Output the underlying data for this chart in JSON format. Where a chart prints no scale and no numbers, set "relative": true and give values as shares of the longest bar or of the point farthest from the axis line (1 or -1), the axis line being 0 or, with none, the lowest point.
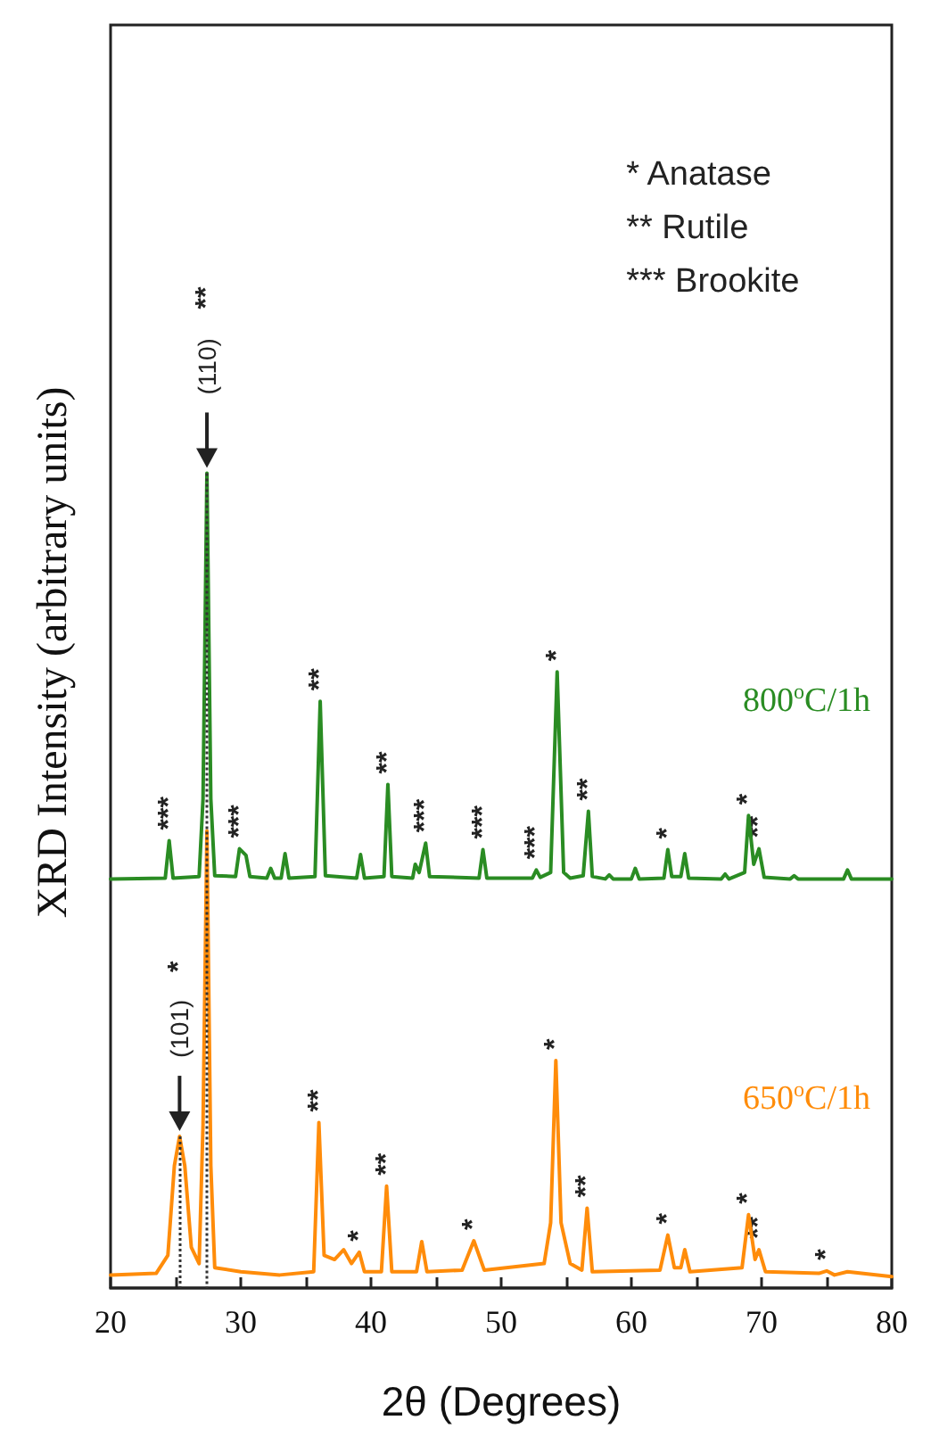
{
  "chart_data": {
    "type": "line",
    "xlabel": "2θ (Degrees)",
    "ylabel": "XRD Intensity (arbitrary units)",
    "relative": true,
    "grid": false,
    "marker": "none",
    "line_style": "solid",
    "xlim": [
      20,
      80
    ],
    "xticks": [
      20,
      {
        "value": 25,
        "label": null
      },
      30,
      {
        "value": 35,
        "label": null
      },
      40,
      {
        "value": 45,
        "label": null
      },
      50,
      {
        "value": 55,
        "label": null
      },
      60,
      {
        "value": 65,
        "label": null
      },
      70,
      {
        "value": 75,
        "label": null
      },
      80
    ],
    "series": [
      {
        "name": "800$^{o}$C/1h",
        "color": "#2a8c23",
        "x": [
          20,
          24.2,
          24.5,
          24.8,
          26.8,
          27.1,
          27.4,
          27.7,
          28.0,
          29.6,
          29.9,
          30.4,
          30.7,
          32.0,
          32.3,
          32.6,
          33.1,
          33.4,
          33.7,
          35.7,
          36.1,
          36.5,
          38.9,
          39.2,
          39.5,
          41.0,
          41.3,
          41.6,
          43.2,
          43.4,
          43.7,
          44.2,
          44.5,
          48.3,
          48.6,
          48.9,
          52.4,
          52.7,
          53.0,
          53.8,
          54.3,
          54.8,
          55.3,
          56.3,
          56.7,
          57.0,
          58.0,
          58.3,
          58.6,
          60.0,
          60.3,
          60.6,
          62.5,
          62.8,
          63.1,
          63.8,
          64.1,
          64.4,
          66.9,
          67.2,
          67.5,
          68.7,
          69.0,
          69.4,
          69.8,
          70.2,
          72.2,
          72.5,
          72.8,
          76.3,
          76.6,
          76.9,
          80
        ],
        "values": [
          0.502,
          0.503,
          0.549,
          0.503,
          0.505,
          0.6,
          1.0,
          0.6,
          0.506,
          0.505,
          0.539,
          0.531,
          0.505,
          0.503,
          0.515,
          0.503,
          0.503,
          0.533,
          0.503,
          0.505,
          0.72,
          0.506,
          0.503,
          0.532,
          0.503,
          0.505,
          0.618,
          0.505,
          0.503,
          0.52,
          0.51,
          0.546,
          0.505,
          0.503,
          0.538,
          0.503,
          0.503,
          0.513,
          0.504,
          0.51,
          0.756,
          0.51,
          0.503,
          0.506,
          0.585,
          0.505,
          0.502,
          0.507,
          0.502,
          0.502,
          0.515,
          0.502,
          0.503,
          0.538,
          0.505,
          0.505,
          0.533,
          0.503,
          0.502,
          0.508,
          0.502,
          0.51,
          0.58,
          0.52,
          0.539,
          0.504,
          0.502,
          0.506,
          0.502,
          0.502,
          0.513,
          0.502,
          0.502
        ]
      },
      {
        "name": "650$^{o}$C/1h",
        "color": "#ff8c0a",
        "x": [
          20,
          23.5,
          24.4,
          24.9,
          25.3,
          25.7,
          26.2,
          26.8,
          27.1,
          27.4,
          27.7,
          28.0,
          30,
          33,
          35.6,
          36.0,
          36.4,
          37.2,
          37.9,
          38.5,
          39.1,
          39.5,
          40.8,
          41.2,
          41.6,
          43.5,
          43.9,
          44.3,
          47.0,
          47.9,
          48.7,
          53.3,
          53.8,
          54.2,
          54.6,
          55.3,
          56.2,
          56.6,
          57.0,
          62.2,
          62.8,
          63.3,
          63.8,
          64.1,
          64.5,
          68.5,
          69.0,
          69.5,
          69.8,
          70.3,
          74.4,
          75.0,
          75.6,
          76.6,
          80
        ],
        "values": [
          0.016,
          0.018,
          0.04,
          0.15,
          0.186,
          0.15,
          0.05,
          0.03,
          0.2,
          0.561,
          0.15,
          0.025,
          0.02,
          0.016,
          0.02,
          0.203,
          0.04,
          0.035,
          0.047,
          0.03,
          0.044,
          0.02,
          0.02,
          0.125,
          0.02,
          0.02,
          0.057,
          0.02,
          0.022,
          0.058,
          0.022,
          0.03,
          0.08,
          0.279,
          0.08,
          0.03,
          0.022,
          0.098,
          0.02,
          0.022,
          0.065,
          0.025,
          0.025,
          0.047,
          0.02,
          0.025,
          0.09,
          0.035,
          0.047,
          0.02,
          0.018,
          0.021,
          0.016,
          0.02,
          0.014
        ]
      }
    ],
    "ref_lines": [
      {
        "axis": "x",
        "value": 27.4,
        "color": "#333333",
        "line_style": "dotted"
      },
      {
        "axis": "x",
        "value": 25.3,
        "color": "#333333",
        "line_style": "dotted"
      }
    ],
    "annotations": [
      "* Anatase",
      "** Rutile",
      "*** Brookite",
      {
        "text": "***",
        "x": 24.5,
        "y": 0.549
      },
      {
        "text": "***",
        "x": 29.9,
        "y": 0.539
      },
      {
        "text": "**",
        "x": 36.1,
        "y": 0.72
      },
      {
        "text": "**",
        "x": 41.3,
        "y": 0.618
      },
      {
        "text": "***",
        "x": 44.2,
        "y": 0.546
      },
      {
        "text": "***",
        "x": 48.6,
        "y": 0.538
      },
      {
        "text": "***",
        "x": 52.7,
        "y": 0.513
      },
      {
        "text": "*",
        "x": 54.3,
        "y": 0.756
      },
      {
        "text": "**",
        "x": 56.7,
        "y": 0.585
      },
      {
        "text": "*",
        "x": 62.8,
        "y": 0.538
      },
      {
        "text": "*",
        "x": 69.0,
        "y": 0.58
      },
      {
        "text": "**",
        "x": 69.8,
        "y": 0.539
      },
      {
        "text": "**",
        "x": 36.0,
        "y": 0.203
      },
      {
        "text": "*",
        "x": 39.1,
        "y": 0.044
      },
      {
        "text": "**",
        "x": 41.2,
        "y": 0.125
      },
      {
        "text": "*",
        "x": 47.9,
        "y": 0.058
      },
      {
        "text": "*",
        "x": 54.2,
        "y": 0.279
      },
      {
        "text": "**",
        "x": 56.6,
        "y": 0.098
      },
      {
        "text": "*",
        "x": 62.8,
        "y": 0.065
      },
      {
        "text": "*",
        "x": 69.0,
        "y": 0.09
      },
      {
        "text": "**",
        "x": 69.8,
        "y": 0.047
      },
      {
        "text": "*",
        "x": 75.0,
        "y": 0.021
      },
      "(110)",
      "**",
      "(101)",
      "*"
    ]
  }
}
